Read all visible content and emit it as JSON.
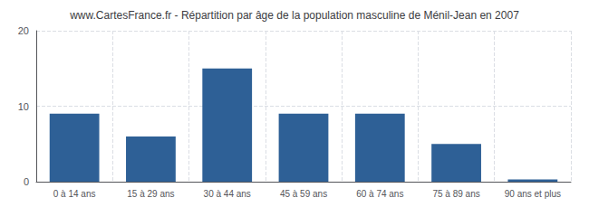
{
  "chart_data": {
    "type": "bar",
    "title": "www.CartesFrance.fr - Répartition par âge de la population masculine de Ménil-Jean en 2007",
    "categories": [
      "0 à 14 ans",
      "15 à 29 ans",
      "30 à 44 ans",
      "45 à 59 ans",
      "60 à 74 ans",
      "75 à 89 ans",
      "90 ans et plus"
    ],
    "values": [
      9,
      6,
      15,
      9,
      9,
      5,
      0.3
    ],
    "color": "#2E6096",
    "ylim": [
      0,
      20
    ],
    "yticks": [
      0,
      10,
      20
    ],
    "grid": true
  }
}
